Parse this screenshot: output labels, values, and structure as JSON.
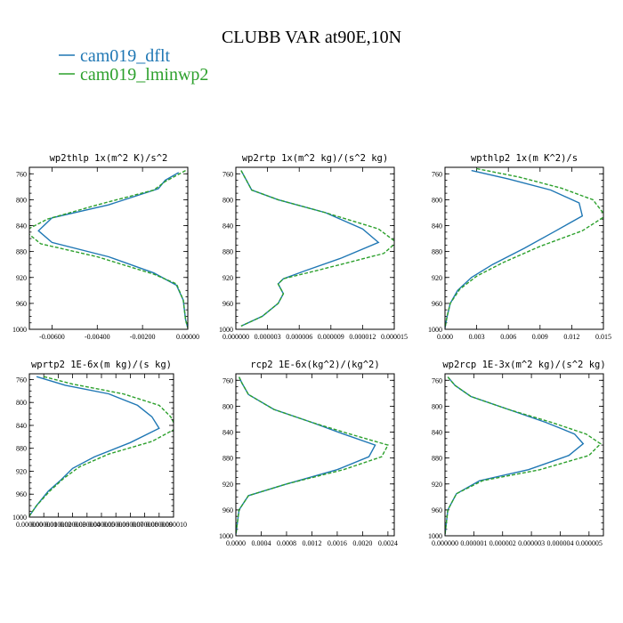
{
  "figure": {
    "title": "CLUBB VAR at90E,10N",
    "legend": [
      {
        "name": "cam019_dflt",
        "color": "#1f77b4",
        "dash": "solid"
      },
      {
        "name": "cam019_lminwp2",
        "color": "#2ca02c",
        "dash": "dashed"
      }
    ]
  },
  "chart_data": [
    {
      "type": "line",
      "title": "wp2thlp  1x(m^2 K)/s^2",
      "xlim": [
        -0.007,
        0.0
      ],
      "ylim": [
        1000,
        750
      ],
      "xticks": [
        -0.006,
        -0.004,
        -0.002,
        0.0
      ],
      "xtick_labels": [
        "-0.00600",
        "-0.00400",
        "-0.00200",
        "0.00000"
      ],
      "yticks": [
        760,
        800,
        840,
        880,
        920,
        960,
        1000
      ],
      "ytick_labels": [
        "760",
        "800",
        "840",
        "880",
        "920",
        "960",
        "1000"
      ],
      "series": [
        {
          "name": "cam019_dflt",
          "points": [
            [
              -0.0004,
              758
            ],
            [
              -0.001,
              770
            ],
            [
              -0.0013,
              783
            ],
            [
              -0.0035,
              808
            ],
            [
              -0.006,
              828
            ],
            [
              -0.0066,
              848
            ],
            [
              -0.006,
              866
            ],
            [
              -0.0035,
              888
            ],
            [
              -0.0015,
              913
            ],
            [
              -0.0005,
              932
            ],
            [
              -0.0002,
              955
            ],
            [
              -0.0001,
              985
            ],
            [
              0.0,
              998
            ]
          ]
        },
        {
          "name": "cam019_lminwp2",
          "points": [
            [
              -0.0001,
              755
            ],
            [
              -0.001,
              772
            ],
            [
              -0.0015,
              785
            ],
            [
              -0.004,
              808
            ],
            [
              -0.0062,
              830
            ],
            [
              -0.0072,
              848
            ],
            [
              -0.0065,
              868
            ],
            [
              -0.004,
              888
            ],
            [
              -0.0015,
              915
            ],
            [
              -0.0005,
              930
            ],
            [
              -0.0002,
              955
            ],
            [
              -0.0001,
              985
            ],
            [
              0.0,
              998
            ]
          ]
        }
      ]
    },
    {
      "type": "line",
      "title": "wp2rtp  1x(m^2 kg)/(s^2 kg)",
      "xlim": [
        0.0,
        1.5e-05
      ],
      "ylim": [
        1000,
        750
      ],
      "xticks": [
        0.0,
        3e-06,
        6e-06,
        9e-06,
        1.2e-05,
        1.5e-05
      ],
      "xtick_labels": [
        "0.000000",
        "0.000003",
        "0.000006",
        "0.000009",
        "0.000012",
        "0.000015"
      ],
      "yticks": [
        760,
        800,
        840,
        880,
        920,
        960,
        1000
      ],
      "ytick_labels": [
        "760",
        "800",
        "840",
        "880",
        "920",
        "960",
        "1000"
      ],
      "series": [
        {
          "name": "cam019_dflt",
          "points": [
            [
              5e-07,
              755
            ],
            [
              1e-06,
              770
            ],
            [
              1.5e-06,
              785
            ],
            [
              4e-06,
              800
            ],
            [
              8.5e-06,
              820
            ],
            [
              1.2e-05,
              845
            ],
            [
              1.35e-05,
              866
            ],
            [
              1e-05,
              890
            ],
            [
              6.5e-06,
              910
            ],
            [
              4.5e-06,
              922
            ],
            [
              4e-06,
              930
            ],
            [
              4.5e-06,
              945
            ],
            [
              4e-06,
              960
            ],
            [
              2.5e-06,
              980
            ],
            [
              5e-07,
              995
            ]
          ]
        },
        {
          "name": "cam019_lminwp2",
          "points": [
            [
              5e-07,
              755
            ],
            [
              1e-06,
              770
            ],
            [
              1.5e-06,
              785
            ],
            [
              4e-06,
              800
            ],
            [
              8.5e-06,
              820
            ],
            [
              1.35e-05,
              845
            ],
            [
              1.52e-05,
              866
            ],
            [
              1.4e-05,
              883
            ],
            [
              8e-06,
              908
            ],
            [
              4.5e-06,
              922
            ],
            [
              4e-06,
              930
            ],
            [
              4.5e-06,
              945
            ],
            [
              4e-06,
              960
            ],
            [
              2.5e-06,
              980
            ],
            [
              5e-07,
              995
            ]
          ]
        }
      ]
    },
    {
      "type": "line",
      "title": "wpthlp2  1x(m K^2)/s",
      "xlim": [
        0.0,
        0.015
      ],
      "ylim": [
        1000,
        750
      ],
      "xticks": [
        0.0,
        0.003,
        0.006,
        0.009,
        0.012,
        0.015
      ],
      "xtick_labels": [
        "0.000",
        "0.003",
        "0.006",
        "0.009",
        "0.012",
        "0.015"
      ],
      "yticks": [
        760,
        800,
        840,
        880,
        920,
        960,
        1000
      ],
      "ytick_labels": [
        "760",
        "800",
        "840",
        "880",
        "920",
        "960",
        "1000"
      ],
      "series": [
        {
          "name": "cam019_dflt",
          "points": [
            [
              0.0025,
              755
            ],
            [
              0.006,
              768
            ],
            [
              0.01,
              785
            ],
            [
              0.0127,
              805
            ],
            [
              0.013,
              825
            ],
            [
              0.0105,
              848
            ],
            [
              0.0075,
              875
            ],
            [
              0.0045,
              900
            ],
            [
              0.0025,
              920
            ],
            [
              0.0012,
              940
            ],
            [
              0.0005,
              960
            ],
            [
              0.0002,
              980
            ],
            [
              0.0,
              998
            ]
          ]
        },
        {
          "name": "cam019_lminwp2",
          "points": [
            [
              0.003,
              752
            ],
            [
              0.007,
              765
            ],
            [
              0.011,
              782
            ],
            [
              0.014,
              800
            ],
            [
              0.0152,
              825
            ],
            [
              0.013,
              848
            ],
            [
              0.009,
              872
            ],
            [
              0.0055,
              897
            ],
            [
              0.003,
              918
            ],
            [
              0.0014,
              938
            ],
            [
              0.0005,
              960
            ],
            [
              0.0002,
              980
            ],
            [
              0.0,
              998
            ]
          ]
        }
      ]
    },
    {
      "type": "line",
      "title": "wprtp2  1E-6x(m kg)/(s kg)",
      "xlim": [
        0.0,
        1e-05
      ],
      "ylim": [
        1000,
        750
      ],
      "xticks": [
        0.0,
        1e-06,
        2e-06,
        3e-06,
        4e-06,
        5e-06,
        6e-06,
        7e-06,
        8e-06,
        9e-06,
        1e-05
      ],
      "xtick_labels": [
        "0.000000",
        "0.000001",
        "0.000002",
        "0.000003",
        "0.000004",
        "0.000005",
        "0.000006",
        "0.000007",
        "0.000008",
        "0.000009",
        "0.000010"
      ],
      "yticks": [
        760,
        800,
        840,
        880,
        920,
        960,
        1000
      ],
      "ytick_labels": [
        "760",
        "800",
        "840",
        "880",
        "920",
        "960",
        "1000"
      ],
      "series": [
        {
          "name": "cam019_dflt",
          "points": [
            [
              5e-07,
              755
            ],
            [
              2.5e-06,
              770
            ],
            [
              5.5e-06,
              785
            ],
            [
              7.5e-06,
              805
            ],
            [
              8.5e-06,
              825
            ],
            [
              9e-06,
              845
            ],
            [
              7e-06,
              870
            ],
            [
              4.5e-06,
              895
            ],
            [
              3e-06,
              915
            ],
            [
              2.2e-06,
              935
            ],
            [
              1.3e-06,
              955
            ],
            [
              5e-07,
              980
            ],
            [
              0.0,
              998
            ]
          ]
        },
        {
          "name": "cam019_lminwp2",
          "points": [
            [
              1e-06,
              755
            ],
            [
              3e-06,
              768
            ],
            [
              6.5e-06,
              785
            ],
            [
              9e-06,
              805
            ],
            [
              9.8e-06,
              825
            ],
            [
              1.02e-05,
              845
            ],
            [
              8.5e-06,
              868
            ],
            [
              5.5e-06,
              890
            ],
            [
              3.5e-06,
              912
            ],
            [
              2.4e-06,
              932
            ],
            [
              1.4e-06,
              955
            ],
            [
              5e-07,
              980
            ],
            [
              0.0,
              998
            ]
          ]
        }
      ]
    },
    {
      "type": "line",
      "title": "rcp2  1E-6x(kg^2)/(kg^2)",
      "xlim": [
        0.0,
        0.0025
      ],
      "ylim": [
        1000,
        750
      ],
      "xticks": [
        0.0,
        0.0004,
        0.0008,
        0.0012,
        0.0016,
        0.002,
        0.0024
      ],
      "xtick_labels": [
        "0.0000",
        "0.0004",
        "0.0008",
        "0.0012",
        "0.0016",
        "0.0020",
        "0.0024"
      ],
      "yticks": [
        760,
        800,
        840,
        880,
        920,
        960,
        1000
      ],
      "ytick_labels": [
        "760",
        "800",
        "840",
        "880",
        "920",
        "960",
        "1000"
      ],
      "series": [
        {
          "name": "cam019_dflt",
          "points": [
            [
              5e-05,
              755
            ],
            [
              0.0001,
              765
            ],
            [
              0.0002,
              782
            ],
            [
              0.0006,
              805
            ],
            [
              0.0012,
              825
            ],
            [
              0.0017,
              843
            ],
            [
              0.0022,
              860
            ],
            [
              0.0021,
              878
            ],
            [
              0.0016,
              898
            ],
            [
              0.0008,
              920
            ],
            [
              0.0002,
              938
            ],
            [
              5e-05,
              960
            ],
            [
              0.0,
              998
            ]
          ]
        },
        {
          "name": "cam019_lminwp2",
          "points": [
            [
              5e-05,
              755
            ],
            [
              0.0001,
              765
            ],
            [
              0.0002,
              782
            ],
            [
              0.0006,
              805
            ],
            [
              0.0012,
              825
            ],
            [
              0.0018,
              843
            ],
            [
              0.0024,
              860
            ],
            [
              0.0023,
              878
            ],
            [
              0.0017,
              898
            ],
            [
              0.0008,
              920
            ],
            [
              0.0002,
              938
            ],
            [
              5e-05,
              960
            ],
            [
              0.0,
              998
            ]
          ]
        }
      ]
    },
    {
      "type": "line",
      "title": "wp2rcp  1E-3x(m^2 kg)/(s^2 kg)",
      "xlim": [
        0.0,
        5.5e-06
      ],
      "ylim": [
        1000,
        750
      ],
      "xticks": [
        0.0,
        1e-06,
        2e-06,
        3e-06,
        4e-06,
        5e-06
      ],
      "xtick_labels": [
        "0.000000",
        "0.000001",
        "0.000002",
        "0.000003",
        "0.000004",
        "0.000005"
      ],
      "yticks": [
        760,
        800,
        840,
        880,
        920,
        960,
        1000
      ],
      "ytick_labels": [
        "760",
        "800",
        "840",
        "880",
        "920",
        "960",
        "1000"
      ],
      "series": [
        {
          "name": "cam019_dflt",
          "points": [
            [
              1e-07,
              755
            ],
            [
              3.5e-07,
              768
            ],
            [
              9e-07,
              785
            ],
            [
              2.2e-06,
              805
            ],
            [
              3.5e-06,
              825
            ],
            [
              4.5e-06,
              843
            ],
            [
              4.8e-06,
              858
            ],
            [
              4.3e-06,
              876
            ],
            [
              2.9e-06,
              898
            ],
            [
              1.2e-06,
              915
            ],
            [
              4e-07,
              935
            ],
            [
              1e-07,
              960
            ],
            [
              0.0,
              998
            ]
          ]
        },
        {
          "name": "cam019_lminwp2",
          "points": [
            [
              1e-07,
              755
            ],
            [
              3.5e-07,
              768
            ],
            [
              9e-07,
              785
            ],
            [
              2.2e-06,
              805
            ],
            [
              3.7e-06,
              825
            ],
            [
              4.9e-06,
              843
            ],
            [
              5.4e-06,
              858
            ],
            [
              5e-06,
              876
            ],
            [
              3.3e-06,
              898
            ],
            [
              1.3e-06,
              915
            ],
            [
              4e-07,
              935
            ],
            [
              1e-07,
              960
            ],
            [
              0.0,
              998
            ]
          ]
        }
      ]
    }
  ]
}
